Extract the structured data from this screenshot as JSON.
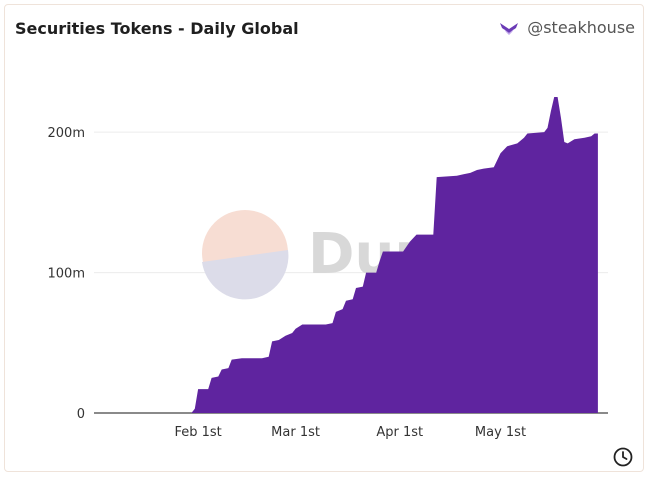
{
  "header": {
    "title": "Securities Tokens - Daily Global",
    "author": "@steakhouse",
    "author_icon": "steakhouse-logo-icon"
  },
  "watermark": {
    "text": "Dune"
  },
  "footer": {
    "icon": "clock-icon"
  },
  "colors": {
    "area": "#5f249f",
    "grid": "#ececec",
    "brand": "#6b3bb6"
  },
  "chart_data": {
    "type": "area",
    "title": "Securities Tokens - Daily Global",
    "xlabel": "",
    "ylabel": "",
    "ylim": [
      0,
      230000000
    ],
    "y_ticks": [
      {
        "value": 0,
        "label": "0"
      },
      {
        "value": 100000000,
        "label": "100m"
      },
      {
        "value": 200000000,
        "label": "200m"
      }
    ],
    "x_ticks": [
      {
        "date": "2024-02-01",
        "label": "Feb 1st"
      },
      {
        "date": "2024-03-01",
        "label": "Mar 1st"
      },
      {
        "date": "2024-04-01",
        "label": "Apr 1st"
      },
      {
        "date": "2024-05-01",
        "label": "May 1st"
      }
    ],
    "x_range": [
      "2024-01-01",
      "2024-06-02"
    ],
    "grid": true,
    "series": [
      {
        "points": [
          [
            "2024-01-01",
            0
          ],
          [
            "2024-01-30",
            0
          ],
          [
            "2024-01-31",
            3000000
          ],
          [
            "2024-02-01",
            17000000
          ],
          [
            "2024-02-04",
            17000000
          ],
          [
            "2024-02-05",
            25000000
          ],
          [
            "2024-02-07",
            26000000
          ],
          [
            "2024-02-08",
            31000000
          ],
          [
            "2024-02-10",
            32000000
          ],
          [
            "2024-02-11",
            38000000
          ],
          [
            "2024-02-14",
            39000000
          ],
          [
            "2024-02-20",
            39000000
          ],
          [
            "2024-02-22",
            40000000
          ],
          [
            "2024-02-23",
            51000000
          ],
          [
            "2024-02-25",
            52000000
          ],
          [
            "2024-02-27",
            55000000
          ],
          [
            "2024-02-29",
            57000000
          ],
          [
            "2024-03-01",
            60000000
          ],
          [
            "2024-03-03",
            63000000
          ],
          [
            "2024-03-10",
            63000000
          ],
          [
            "2024-03-12",
            64000000
          ],
          [
            "2024-03-13",
            72000000
          ],
          [
            "2024-03-15",
            74000000
          ],
          [
            "2024-03-16",
            80000000
          ],
          [
            "2024-03-18",
            81000000
          ],
          [
            "2024-03-19",
            89000000
          ],
          [
            "2024-03-21",
            90000000
          ],
          [
            "2024-03-22",
            100000000
          ],
          [
            "2024-03-25",
            100000000
          ],
          [
            "2024-03-26",
            108000000
          ],
          [
            "2024-03-27",
            115000000
          ],
          [
            "2024-04-02",
            115000000
          ],
          [
            "2024-04-04",
            122000000
          ],
          [
            "2024-04-06",
            127000000
          ],
          [
            "2024-04-11",
            127000000
          ],
          [
            "2024-04-12",
            168000000
          ],
          [
            "2024-04-18",
            169000000
          ],
          [
            "2024-04-20",
            170000000
          ],
          [
            "2024-04-22",
            171000000
          ],
          [
            "2024-04-24",
            173000000
          ],
          [
            "2024-04-26",
            174000000
          ],
          [
            "2024-04-29",
            175000000
          ],
          [
            "2024-05-01",
            185000000
          ],
          [
            "2024-05-03",
            190000000
          ],
          [
            "2024-05-06",
            192000000
          ],
          [
            "2024-05-08",
            196000000
          ],
          [
            "2024-05-09",
            199000000
          ],
          [
            "2024-05-14",
            200000000
          ],
          [
            "2024-05-15",
            203000000
          ],
          [
            "2024-05-16",
            215000000
          ],
          [
            "2024-05-17",
            225000000
          ],
          [
            "2024-05-18",
            225000000
          ],
          [
            "2024-05-19",
            210000000
          ],
          [
            "2024-05-20",
            193000000
          ],
          [
            "2024-05-21",
            192000000
          ],
          [
            "2024-05-23",
            195000000
          ],
          [
            "2024-05-26",
            196000000
          ],
          [
            "2024-05-28",
            197000000
          ],
          [
            "2024-05-29",
            199000000
          ],
          [
            "2024-05-30",
            199000000
          ]
        ]
      }
    ]
  }
}
